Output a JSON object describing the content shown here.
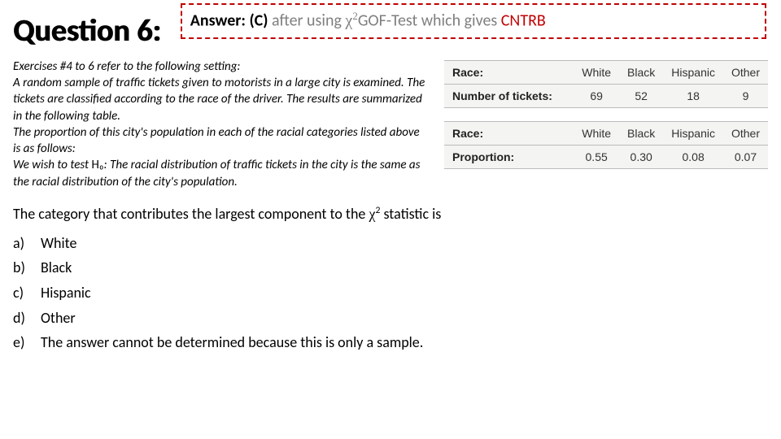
{
  "header": {
    "title": "Question 6:",
    "answer": {
      "label": "Answer:",
      "choice": "(C)",
      "after": "after using",
      "chi_prefix": "χ",
      "chi_exp": "2",
      "test": "GOF-Test which gives",
      "cntrb": "CNTRB"
    }
  },
  "setting": {
    "lead": "Exercises #4 to 6 refer to the following setting:",
    "p1": "A random sample of traffic tickets given to motorists in a large city is examined. The tickets are classified according to the race of the driver. The results are summarized in the following table.",
    "p2": "The proportion of this city's population in each of the racial categories listed above is as follows:",
    "p3a": "We wish to test ",
    "p3_h0": "H₀",
    "p3b": ": The racial distribution of traffic tickets in the city is the same as the racial distribution of the city's population."
  },
  "tables": {
    "t1": {
      "row1_head": "Race:",
      "row1": [
        "White",
        "Black",
        "Hispanic",
        "Other"
      ],
      "row2_head": "Number of tickets:",
      "row2": [
        "69",
        "52",
        "18",
        "9"
      ]
    },
    "t2": {
      "row1_head": "Race:",
      "row1": [
        "White",
        "Black",
        "Hispanic",
        "Other"
      ],
      "row2_head": "Proportion:",
      "row2": [
        "0.55",
        "0.30",
        "0.08",
        "0.07"
      ]
    }
  },
  "question": {
    "stem_a": "The category that contributes the largest component to the ",
    "chi": "χ",
    "chi_exp": "2",
    "stem_b": " statistic is"
  },
  "options": {
    "a": {
      "letter": "a)",
      "text": "White"
    },
    "b": {
      "letter": "b)",
      "text": "Black"
    },
    "c": {
      "letter": "c)",
      "text": "Hispanic"
    },
    "d": {
      "letter": "d)",
      "text": "Other"
    },
    "e": {
      "letter": "e)",
      "text": "The answer cannot be determined because this is only a sample."
    }
  },
  "style": {
    "answer_border_color": "#c00000",
    "cntrb_color": "#c00000",
    "table_bg": "#f4f4f2"
  }
}
